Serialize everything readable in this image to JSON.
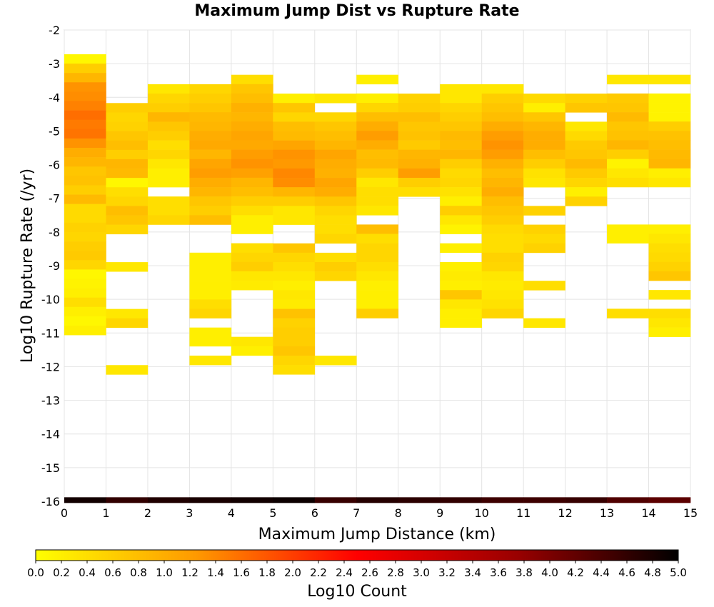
{
  "chart_data": {
    "type": "heatmap",
    "title": "Maximum Jump Dist vs Rupture Rate",
    "xlabel": "Maximum Jump Distance (km)",
    "ylabel": "Log10 Rupture Rate (/yr)",
    "xlim": [
      0,
      15
    ],
    "ylim": [
      -16,
      -2
    ],
    "x_ticks": [
      "0",
      "1",
      "2",
      "3",
      "4",
      "5",
      "6",
      "7",
      "8",
      "9",
      "10",
      "11",
      "12",
      "13",
      "14",
      "15"
    ],
    "y_ticks": [
      "-2",
      "-3",
      "-4",
      "-5",
      "-6",
      "-7",
      "-8",
      "-9",
      "-10",
      "-11",
      "-12",
      "-13",
      "-14",
      "-15",
      "-16"
    ],
    "bin_width_x": 1,
    "bin_height_y": 0.278,
    "grid": true,
    "colorbar": {
      "label": "Log10 Count",
      "min": 0,
      "max": 5,
      "ticks": [
        "0.0",
        "0.2",
        "0.4",
        "0.6",
        "0.8",
        "1.0",
        "1.2",
        "1.4",
        "1.6",
        "1.8",
        "2.0",
        "2.2",
        "2.4",
        "2.6",
        "2.8",
        "3.0",
        "3.2",
        "3.4",
        "3.6",
        "3.8",
        "4.0",
        "4.2",
        "4.4",
        "4.6",
        "4.8",
        "5.0"
      ],
      "colors": [
        "#ffff00",
        "#ff9900",
        "#ff0000",
        "#990000",
        "#000000"
      ]
    },
    "bottom_row": {
      "y": -16,
      "values": [
        4.85,
        4.6,
        4.75,
        4.8,
        4.85,
        4.9,
        4.55,
        4.7,
        4.65,
        4.6,
        4.5,
        4.5,
        4.55,
        4.35,
        4.25
      ]
    },
    "columns": [
      {
        "x": 0,
        "y_top": -2.72,
        "values": [
          0.1,
          0.6,
          0.9,
          1.3,
          1.35,
          1.45,
          1.6,
          1.5,
          1.55,
          1.3,
          1.0,
          0.9,
          0.7,
          0.75,
          0.6,
          0.85,
          0.45,
          0.45,
          0.55,
          0.5,
          0.6,
          0.65,
          0.5,
          0.1,
          0.15,
          0.2,
          0.4,
          0.2,
          0.1,
          0.2
        ]
      },
      {
        "x": 1,
        "y_top": -4.17,
        "values": [
          0.6,
          0.5,
          0.55,
          0.7,
          0.8,
          0.6,
          0.9,
          0.85,
          0.1,
          0.4,
          0.5,
          0.8,
          0.7,
          0.5,
          null,
          null,
          null,
          0.3,
          null,
          null,
          null,
          null,
          0.3,
          0.5,
          null,
          null,
          null,
          null,
          0.3
        ]
      },
      {
        "x": 2,
        "y_top": -3.61,
        "values": [
          0.3,
          0.5,
          0.6,
          0.9,
          0.7,
          0.6,
          0.4,
          0.5,
          0.3,
          0.2,
          0.2,
          null,
          0.4,
          0.4,
          0.5
        ]
      },
      {
        "x": 3,
        "y_top": -3.61,
        "values": [
          0.5,
          0.6,
          0.7,
          0.85,
          0.9,
          1.0,
          1.05,
          0.9,
          1.1,
          1.2,
          1.0,
          0.9,
          0.7,
          0.6,
          0.8,
          null,
          null,
          null,
          0.2,
          0.2,
          0.2,
          0.2,
          0.2,
          0.4,
          0.5,
          null,
          0.2,
          0.2,
          null,
          0.3
        ]
      },
      {
        "x": 4,
        "y_top": -3.33,
        "values": [
          0.4,
          0.7,
          0.8,
          0.95,
          0.9,
          1.0,
          1.1,
          1.05,
          1.2,
          1.3,
          1.15,
          0.9,
          0.8,
          0.6,
          0.4,
          0.2,
          0.2,
          null,
          0.4,
          0.5,
          0.6,
          0.3,
          0.25,
          null,
          null,
          null,
          null,
          null,
          0.3,
          0.2
        ]
      },
      {
        "x": 5,
        "y_top": -3.89,
        "values": [
          0.2,
          0.7,
          0.5,
          0.8,
          0.85,
          1.1,
          1.3,
          1.25,
          1.4,
          1.35,
          0.9,
          0.6,
          0.3,
          0.3,
          null,
          null,
          0.7,
          0.5,
          0.4,
          0.3,
          0.2,
          0.3,
          0.25,
          0.75,
          0.55,
          0.6,
          0.6,
          0.7,
          0.5,
          0.4
        ]
      },
      {
        "x": 6,
        "y_top": -3.89,
        "values": [
          0.3,
          null,
          0.5,
          0.7,
          0.8,
          0.9,
          1.1,
          1.0,
          0.95,
          1.1,
          1.0,
          0.7,
          0.5,
          0.4,
          0.4,
          0.5,
          null,
          0.4,
          0.6,
          0.5,
          null,
          null,
          null,
          null,
          null,
          null,
          null,
          null,
          0.3
        ]
      },
      {
        "x": 7,
        "y_top": -3.33,
        "values": [
          0.2,
          null,
          0.2,
          0.5,
          0.8,
          1.0,
          1.2,
          1.0,
          0.8,
          0.85,
          0.6,
          0.3,
          0.4,
          0.4,
          0.3,
          null,
          0.8,
          0.4,
          0.5,
          0.5,
          0.4,
          0.3,
          0.2,
          0.2,
          0.2,
          0.6
        ]
      },
      {
        "x": 8,
        "y_top": -3.89,
        "values": [
          0.55,
          0.6,
          0.8,
          0.7,
          0.75,
          0.65,
          0.9,
          0.95,
          1.2,
          0.6,
          0.4
        ]
      },
      {
        "x": 9,
        "y_top": -3.61,
        "values": [
          0.3,
          0.3,
          0.5,
          0.6,
          0.7,
          0.85,
          0.8,
          0.9,
          0.6,
          0.45,
          0.5,
          0.35,
          0.2,
          0.6,
          0.3,
          0.15,
          null,
          0.2,
          null,
          0.2,
          0.25,
          0.2,
          0.7,
          0.3,
          0.2,
          0.2
        ]
      },
      {
        "x": 10,
        "y_top": -3.61,
        "values": [
          0.3,
          0.6,
          0.7,
          0.8,
          1.0,
          1.2,
          1.3,
          1.2,
          0.95,
          0.8,
          0.9,
          1.0,
          0.8,
          0.7,
          0.6,
          0.45,
          0.4,
          0.4,
          0.55,
          0.5,
          0.3,
          0.25,
          0.3,
          0.35,
          0.5
        ]
      },
      {
        "x": 11,
        "y_top": -3.89,
        "values": [
          0.45,
          0.2,
          0.7,
          0.9,
          1.0,
          1.0,
          0.8,
          0.6,
          0.35,
          0.3,
          null,
          null,
          0.55,
          null,
          0.55,
          0.45,
          0.55,
          null,
          null,
          null,
          0.4,
          null,
          null,
          null,
          0.3
        ]
      },
      {
        "x": 12,
        "y_top": -3.89,
        "values": [
          0.55,
          0.7,
          null,
          0.3,
          0.45,
          0.65,
          0.7,
          0.85,
          0.65,
          0.5,
          0.2,
          0.55
        ]
      },
      {
        "x": 13,
        "y_top": -3.33,
        "values": [
          0.3,
          null,
          0.65,
          0.7,
          0.85,
          0.7,
          0.75,
          0.9,
          0.6,
          0.15,
          0.3,
          0.4,
          null,
          null,
          null,
          null,
          0.2,
          0.2,
          null,
          null,
          null,
          null,
          null,
          null,
          null,
          0.4
        ]
      },
      {
        "x": 14,
        "y_top": -3.33,
        "values": [
          0.3,
          null,
          0.15,
          0.15,
          0.15,
          0.6,
          0.75,
          0.8,
          0.85,
          0.9,
          0.2,
          0.3,
          null,
          null,
          null,
          null,
          0.2,
          0.3,
          0.4,
          0.45,
          0.55,
          0.7,
          null,
          0.3,
          null,
          0.4,
          0.3,
          0.2
        ]
      }
    ]
  }
}
